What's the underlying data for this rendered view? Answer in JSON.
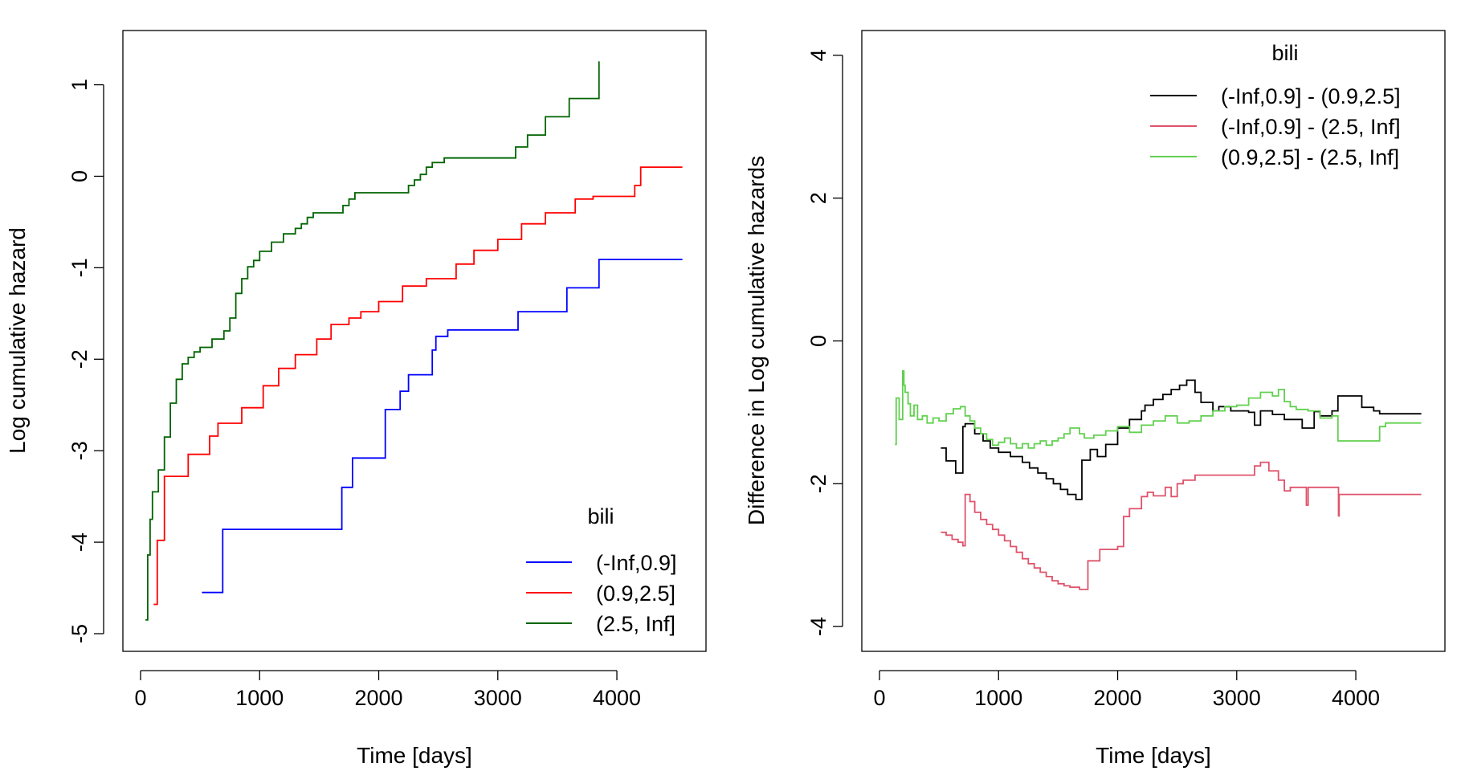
{
  "chart_data": [
    {
      "type": "line",
      "step": true,
      "title": "",
      "xlabel": "Time [days]",
      "ylabel": "Log cumulative hazard",
      "xlim": [
        0,
        4600
      ],
      "ylim": [
        -5,
        1.4
      ],
      "xticks": [
        0,
        1000,
        2000,
        3000,
        4000
      ],
      "xtick_labels": [
        "0",
        "1000",
        "2000",
        "3000",
        "4000"
      ],
      "yticks": [
        -5,
        -4,
        -3,
        -2,
        -1,
        0,
        1
      ],
      "ytick_labels": [
        "-5",
        "-4",
        "-3",
        "-2",
        "-1",
        "0",
        "1"
      ],
      "grid": false,
      "legend": {
        "title": "bili",
        "position": "bottom-right"
      },
      "series": [
        {
          "name": "(-Inf,0.9]",
          "color": "#0000FF",
          "x": [
            515,
            690,
            1690,
            1780,
            2055,
            2180,
            2250,
            2450,
            2480,
            2580,
            3170,
            3580,
            3850,
            4550
          ],
          "y": [
            -4.55,
            -3.86,
            -3.4,
            -3.08,
            -2.55,
            -2.35,
            -2.17,
            -1.9,
            -1.75,
            -1.68,
            -1.48,
            -1.22,
            -0.91,
            -0.91
          ]
        },
        {
          "name": "(0.9,2.5]",
          "color": "#FF0000",
          "x": [
            110,
            140,
            200,
            400,
            580,
            650,
            850,
            1030,
            1160,
            1300,
            1480,
            1600,
            1750,
            1850,
            2000,
            2200,
            2400,
            2650,
            2800,
            3000,
            3200,
            3400,
            3650,
            3800,
            4150,
            4200,
            4550
          ],
          "y": [
            -4.68,
            -3.98,
            -3.28,
            -3.04,
            -2.84,
            -2.7,
            -2.53,
            -2.29,
            -2.1,
            -1.95,
            -1.78,
            -1.62,
            -1.55,
            -1.48,
            -1.37,
            -1.2,
            -1.12,
            -0.96,
            -0.81,
            -0.69,
            -0.52,
            -0.4,
            -0.25,
            -0.22,
            -0.1,
            0.1,
            0.1
          ]
        },
        {
          "name": "(2.5, Inf]",
          "color": "#006400",
          "x": [
            41,
            60,
            80,
            100,
            150,
            200,
            250,
            300,
            350,
            400,
            450,
            500,
            600,
            700,
            750,
            800,
            850,
            900,
            950,
            1000,
            1100,
            1200,
            1300,
            1350,
            1400,
            1450,
            1700,
            1750,
            1800,
            2250,
            2300,
            2350,
            2400,
            2450,
            2550,
            3150,
            3250,
            3400,
            3600,
            3850,
            3855
          ],
          "y": [
            -4.85,
            -4.14,
            -3.75,
            -3.45,
            -3.21,
            -2.85,
            -2.48,
            -2.22,
            -2.05,
            -1.98,
            -1.92,
            -1.87,
            -1.78,
            -1.69,
            -1.55,
            -1.28,
            -1.12,
            -0.99,
            -0.92,
            -0.82,
            -0.72,
            -0.63,
            -0.57,
            -0.52,
            -0.45,
            -0.4,
            -0.32,
            -0.25,
            -0.18,
            -0.1,
            -0.04,
            0.02,
            0.1,
            0.15,
            0.2,
            0.32,
            0.45,
            0.65,
            0.85,
            1.25,
            1.25
          ]
        }
      ]
    },
    {
      "type": "line",
      "step": true,
      "title": "",
      "xlabel": "Time [days]",
      "ylabel": "Difference in Log cumulative hazards",
      "xlim": [
        0,
        4600
      ],
      "ylim": [
        -4.1,
        4.1
      ],
      "xticks": [
        0,
        1000,
        2000,
        3000,
        4000
      ],
      "xtick_labels": [
        "0",
        "1000",
        "2000",
        "3000",
        "4000"
      ],
      "yticks": [
        -4,
        -2,
        0,
        2,
        4
      ],
      "ytick_labels": [
        "-4",
        "-2",
        "0",
        "2",
        "4"
      ],
      "grid": false,
      "legend": {
        "title": "bili",
        "position": "top-right"
      },
      "series": [
        {
          "name": "(-Inf,0.9] - (0.9,2.5]",
          "color": "#000000",
          "x": [
            515,
            560,
            640,
            700,
            720,
            800,
            870,
            930,
            1000,
            1100,
            1200,
            1260,
            1330,
            1400,
            1460,
            1520,
            1580,
            1650,
            1700,
            1770,
            1830,
            1900,
            2000,
            2100,
            2200,
            2230,
            2300,
            2380,
            2450,
            2520,
            2580,
            2650,
            2700,
            2800,
            2850,
            2950,
            3100,
            3150,
            3200,
            3300,
            3400,
            3550,
            3650,
            3700,
            3800,
            3850,
            4050,
            4150,
            4200,
            4550
          ],
          "y": [
            -1.5,
            -1.68,
            -1.85,
            -1.2,
            -1.16,
            -1.3,
            -1.4,
            -1.5,
            -1.56,
            -1.62,
            -1.7,
            -1.78,
            -1.85,
            -1.93,
            -2.0,
            -2.08,
            -2.15,
            -2.22,
            -1.67,
            -1.52,
            -1.62,
            -1.45,
            -1.22,
            -1.1,
            -0.98,
            -0.9,
            -0.82,
            -0.75,
            -0.68,
            -0.62,
            -0.55,
            -0.72,
            -0.86,
            -0.98,
            -0.92,
            -0.98,
            -1.0,
            -1.18,
            -0.98,
            -1.03,
            -1.1,
            -1.22,
            -0.99,
            -1.05,
            -0.98,
            -0.77,
            -0.93,
            -0.98,
            -1.02,
            -1.02
          ]
        },
        {
          "name": "(-Inf,0.9] - (2.5, Inf]",
          "color": "#DF536B",
          "x": [
            515,
            560,
            610,
            660,
            700,
            720,
            760,
            800,
            850,
            900,
            950,
            1000,
            1050,
            1100,
            1150,
            1200,
            1250,
            1300,
            1350,
            1400,
            1450,
            1500,
            1550,
            1600,
            1680,
            1750,
            1780,
            1850,
            2000,
            2050,
            2100,
            2200,
            2250,
            2300,
            2400,
            2450,
            2500,
            2550,
            2650,
            2750,
            3000,
            3150,
            3200,
            3270,
            3350,
            3400,
            3450,
            3580,
            3585,
            3600,
            3850,
            3855,
            3860,
            4550
          ],
          "y": [
            -2.68,
            -2.72,
            -2.78,
            -2.82,
            -2.87,
            -2.15,
            -2.25,
            -2.4,
            -2.5,
            -2.57,
            -2.64,
            -2.72,
            -2.8,
            -2.88,
            -2.96,
            -3.05,
            -3.12,
            -3.18,
            -3.24,
            -3.3,
            -3.36,
            -3.4,
            -3.43,
            -3.45,
            -3.48,
            -3.08,
            -3.08,
            -2.92,
            -2.88,
            -2.46,
            -2.35,
            -2.18,
            -2.12,
            -2.17,
            -2.05,
            -2.18,
            -2.0,
            -1.95,
            -1.88,
            -1.88,
            -1.88,
            -1.75,
            -1.7,
            -1.82,
            -1.95,
            -2.1,
            -2.05,
            -2.05,
            -2.3,
            -2.05,
            -2.05,
            -2.45,
            -2.15,
            -2.15
          ]
        },
        {
          "name": "(0.9,2.5] - (2.5, Inf]",
          "color": "#61D04F",
          "x": [
            130,
            140,
            165,
            195,
            205,
            215,
            240,
            260,
            290,
            320,
            360,
            400,
            450,
            500,
            560,
            620,
            680,
            720,
            760,
            800,
            850,
            900,
            950,
            1000,
            1050,
            1100,
            1150,
            1200,
            1250,
            1300,
            1350,
            1400,
            1450,
            1500,
            1550,
            1600,
            1680,
            1720,
            1800,
            1900,
            2000,
            2100,
            2200,
            2300,
            2400,
            2500,
            2600,
            2700,
            2800,
            2900,
            3000,
            3100,
            3200,
            3300,
            3350,
            3400,
            3450,
            3500,
            3600,
            3700,
            3800,
            3850,
            4200,
            4250,
            4550
          ],
          "y": [
            -1.45,
            -0.8,
            -1.1,
            -0.42,
            -0.62,
            -0.72,
            -0.88,
            -1.05,
            -0.9,
            -1.1,
            -1.05,
            -1.15,
            -1.08,
            -1.12,
            -1.02,
            -0.95,
            -0.92,
            -1.05,
            -1.12,
            -1.22,
            -1.3,
            -1.38,
            -1.46,
            -1.42,
            -1.36,
            -1.44,
            -1.5,
            -1.44,
            -1.5,
            -1.44,
            -1.4,
            -1.46,
            -1.4,
            -1.36,
            -1.3,
            -1.22,
            -1.3,
            -1.36,
            -1.32,
            -1.26,
            -1.2,
            -1.28,
            -1.18,
            -1.12,
            -1.05,
            -1.15,
            -1.12,
            -1.05,
            -0.98,
            -0.92,
            -0.9,
            -0.8,
            -0.72,
            -0.77,
            -0.68,
            -0.85,
            -0.92,
            -0.96,
            -0.98,
            -1.08,
            -1.05,
            -1.4,
            -1.2,
            -1.15,
            -1.15
          ]
        }
      ]
    }
  ]
}
